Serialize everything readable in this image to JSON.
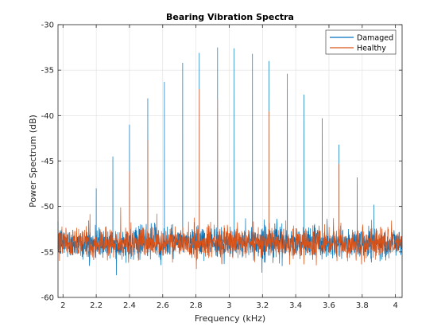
{
  "chart_data": {
    "type": "line",
    "title": "Bearing Vibration Spectra",
    "xlabel": "Frequency (kHz)",
    "ylabel": "Power Spectrum (dB)",
    "xlim": [
      1.97,
      4.04
    ],
    "ylim": [
      -60,
      -30
    ],
    "xticks": [
      2,
      2.2,
      2.4,
      2.6,
      2.8,
      3,
      3.2,
      3.4,
      3.6,
      3.8,
      4
    ],
    "xtick_labels": [
      "2",
      "2.2",
      "2.4",
      "2.6",
      "2.8",
      "3",
      "3.2",
      "3.4",
      "3.6",
      "3.8",
      "4"
    ],
    "yticks": [
      -60,
      -55,
      -50,
      -45,
      -40,
      -35,
      -30
    ],
    "ytick_labels": [
      "-60",
      "-55",
      "-50",
      "-45",
      "-40",
      "-35",
      "-30"
    ],
    "grid": true,
    "legend_position": "top-right",
    "series": [
      {
        "name": "Damaged",
        "color": "#0072BD",
        "noise_floor_db": -54,
        "peaks": [
          {
            "x": 2.2,
            "y": -48.0
          },
          {
            "x": 2.3,
            "y": -44.5
          },
          {
            "x": 2.4,
            "y": -41.0
          },
          {
            "x": 2.51,
            "y": -38.1
          },
          {
            "x": 2.61,
            "y": -36.3
          },
          {
            "x": 2.72,
            "y": -34.2
          },
          {
            "x": 2.82,
            "y": -33.1
          },
          {
            "x": 2.93,
            "y": -32.5
          },
          {
            "x": 3.03,
            "y": -32.6
          },
          {
            "x": 3.14,
            "y": -33.2
          },
          {
            "x": 3.24,
            "y": -34.0
          },
          {
            "x": 3.35,
            "y": -35.4
          },
          {
            "x": 3.45,
            "y": -37.7
          },
          {
            "x": 3.56,
            "y": -40.3
          },
          {
            "x": 3.66,
            "y": -43.2
          },
          {
            "x": 3.77,
            "y": -46.8
          },
          {
            "x": 3.87,
            "y": -49.8
          }
        ]
      },
      {
        "name": "Healthy",
        "color": "#D95319",
        "noise_floor_db": -54,
        "peaks": [
          {
            "x": 2.4,
            "y": -46.1
          },
          {
            "x": 2.51,
            "y": -42.7
          },
          {
            "x": 2.82,
            "y": -37.1
          },
          {
            "x": 2.93,
            "y": -38.2
          },
          {
            "x": 3.24,
            "y": -39.5
          },
          {
            "x": 3.66,
            "y": -45.3
          }
        ]
      }
    ]
  }
}
